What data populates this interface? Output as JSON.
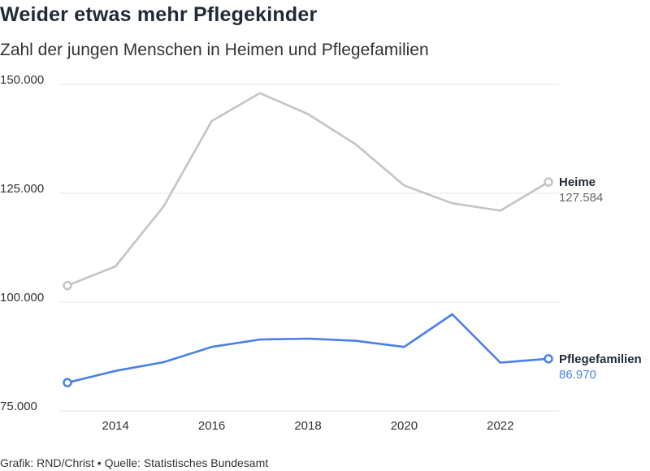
{
  "title": "Weider etwas mehr Pflegekinder",
  "subtitle": "Zahl der jungen Menschen in Heimen und Pflegefamilien",
  "footer": "Grafik: RND/Christ • Quelle: Statistisches Bundesamt",
  "chart_data": {
    "type": "line",
    "title": "Weider etwas mehr Pflegekinder",
    "subtitle": "Zahl der jungen Menschen in Heimen und Pflegefamilien",
    "x": [
      2013,
      2014,
      2015,
      2016,
      2017,
      2018,
      2019,
      2020,
      2021,
      2022,
      2023
    ],
    "x_ticks": [
      2014,
      2016,
      2018,
      2020,
      2022
    ],
    "y_ticks": [
      75000,
      100000,
      125000,
      150000
    ],
    "y_tick_labels": [
      "75.000",
      "100.000",
      "125.000",
      "150.000"
    ],
    "ylim": [
      75000,
      150000
    ],
    "grid": true,
    "series": [
      {
        "name": "Heime",
        "color": "#c4c4c4",
        "label_color": "#666666",
        "end_label": "127.584",
        "values": [
          103800,
          108200,
          122000,
          141600,
          148000,
          143200,
          136200,
          126800,
          122700,
          121000,
          127584
        ]
      },
      {
        "name": "Pflegefamilien",
        "color": "#4a7fe8",
        "label_color": "#4a7fe8",
        "end_label": "86.970",
        "values": [
          81500,
          84200,
          86200,
          89700,
          91400,
          91600,
          91100,
          89700,
          97200,
          86100,
          86970
        ]
      }
    ]
  }
}
